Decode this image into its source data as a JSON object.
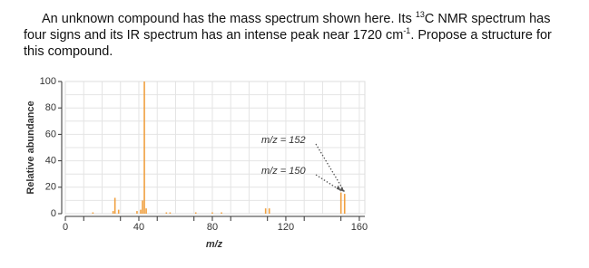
{
  "question": {
    "lines": [
      [
        "An unknown compound has the mass spectrum shown here. Its ",
        "13",
        "C NMR spectrum has"
      ],
      [
        "four signs and its IR spectrum has an intense peak near 1720 cm",
        "-1",
        ". Propose a structure for"
      ],
      [
        "this compound."
      ]
    ]
  },
  "chart_data": {
    "type": "bar",
    "x_label": "m/z",
    "y_label": "Relative abundance",
    "x": [
      15,
      26,
      27,
      29,
      39,
      41,
      42,
      43,
      44,
      55,
      57,
      71,
      80,
      85,
      109,
      111,
      150,
      152
    ],
    "values": [
      1,
      2,
      12,
      3,
      2,
      3,
      10,
      100,
      4,
      1,
      1,
      1,
      1,
      1,
      4,
      4,
      16,
      15
    ],
    "color": "#f0a040",
    "xlim": [
      0,
      163
    ],
    "xticks": [
      0,
      40,
      80,
      120,
      160
    ],
    "ylim": [
      0,
      100
    ],
    "yticks": [
      0,
      20,
      40,
      60,
      80,
      100
    ],
    "grid": true,
    "annotations": [
      "m/z = 152",
      "m/z = 150"
    ]
  }
}
